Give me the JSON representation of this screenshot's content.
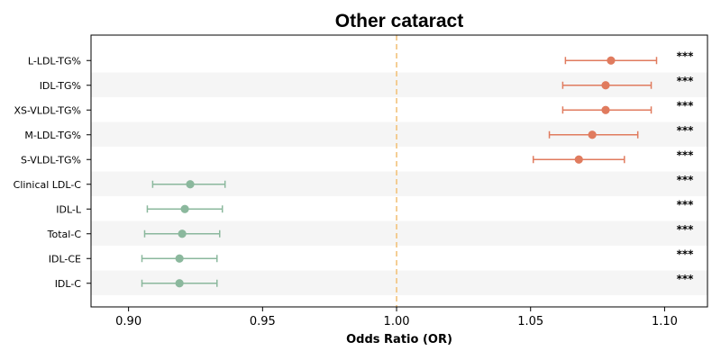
{
  "chart_data": {
    "type": "forest",
    "title": "Other cataract",
    "xlabel": "Odds Ratio (OR)",
    "xlim": [
      0.886,
      1.116
    ],
    "xticks": [
      "0.90",
      "0.95",
      "1.00",
      "1.05",
      "1.10"
    ],
    "reference_line": 1.0,
    "colors": {
      "risk": "#e07b5e",
      "protective": "#8bb89d",
      "reference": "#f2c27b",
      "band": "#f5f5f5"
    },
    "rows": [
      {
        "label": "L-LDL-TG%",
        "or": 1.08,
        "lo": 1.063,
        "hi": 1.097,
        "group": "risk",
        "sig": "***"
      },
      {
        "label": "IDL-TG%",
        "or": 1.078,
        "lo": 1.062,
        "hi": 1.095,
        "group": "risk",
        "sig": "***"
      },
      {
        "label": "XS-VLDL-TG%",
        "or": 1.078,
        "lo": 1.062,
        "hi": 1.095,
        "group": "risk",
        "sig": "***"
      },
      {
        "label": "M-LDL-TG%",
        "or": 1.073,
        "lo": 1.057,
        "hi": 1.09,
        "group": "risk",
        "sig": "***"
      },
      {
        "label": "S-VLDL-TG%",
        "or": 1.068,
        "lo": 1.051,
        "hi": 1.085,
        "group": "risk",
        "sig": "***"
      },
      {
        "label": "Clinical LDL-C",
        "or": 0.923,
        "lo": 0.909,
        "hi": 0.936,
        "group": "protective",
        "sig": "***"
      },
      {
        "label": "IDL-L",
        "or": 0.921,
        "lo": 0.907,
        "hi": 0.935,
        "group": "protective",
        "sig": "***"
      },
      {
        "label": "Total-C",
        "or": 0.92,
        "lo": 0.906,
        "hi": 0.934,
        "group": "protective",
        "sig": "***"
      },
      {
        "label": "IDL-CE",
        "or": 0.919,
        "lo": 0.905,
        "hi": 0.933,
        "group": "protective",
        "sig": "***"
      },
      {
        "label": "IDL-C",
        "or": 0.919,
        "lo": 0.905,
        "hi": 0.933,
        "group": "protective",
        "sig": "***"
      }
    ]
  }
}
